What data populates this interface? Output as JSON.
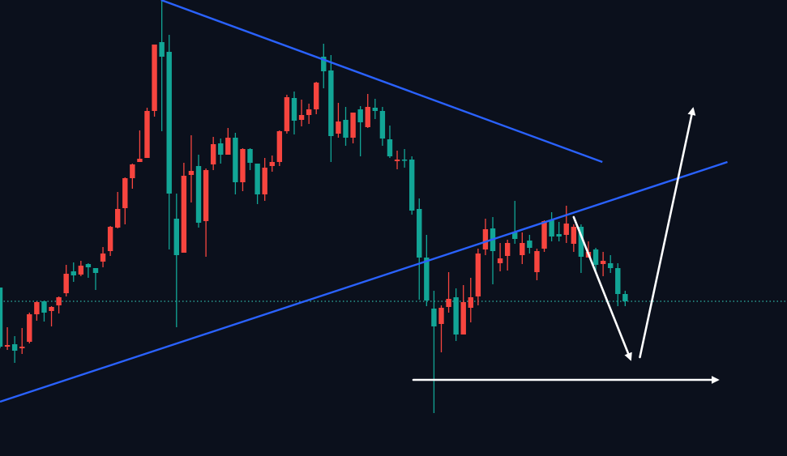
{
  "chart_data": {
    "type": "candlestick",
    "title": "",
    "xlabel": "",
    "ylabel": "",
    "xlim": [
      0,
      107
    ],
    "ylim": [
      0,
      563
    ],
    "grid": false,
    "colors": {
      "background": "#0b101c",
      "up": "#f7453f",
      "down": "#12a596",
      "trendline": "#2a62ff",
      "annotation": "#ffffff",
      "price_line": "#2fb5a8"
    },
    "candles_ohlc": [
      [
        208,
        208,
        133,
        135
      ],
      [
        135,
        159,
        131,
        137
      ],
      [
        138,
        148,
        115,
        130
      ],
      [
        133,
        158,
        126,
        135
      ],
      [
        141,
        177,
        139,
        175
      ],
      [
        175,
        191,
        167,
        190
      ],
      [
        191,
        192,
        166,
        177
      ],
      [
        179,
        185,
        160,
        184
      ],
      [
        186,
        197,
        176,
        196
      ],
      [
        201,
        236,
        197,
        225
      ],
      [
        228,
        239,
        215,
        223
      ],
      [
        224,
        241,
        222,
        235
      ],
      [
        237,
        238,
        220,
        233
      ],
      [
        232,
        232,
        205,
        226
      ],
      [
        240,
        258,
        233,
        250
      ],
      [
        253,
        284,
        247,
        283
      ],
      [
        282,
        326,
        281,
        305
      ],
      [
        306,
        344,
        286,
        343
      ],
      [
        343,
        361,
        330,
        360
      ],
      [
        363,
        402,
        363,
        367
      ],
      [
        368,
        430,
        368,
        426
      ],
      [
        426,
        508,
        419,
        508
      ],
      [
        511,
        563,
        401,
        493
      ],
      [
        499,
        520,
        255,
        324
      ],
      [
        293,
        324,
        159,
        248
      ],
      [
        251,
        362,
        251,
        346
      ],
      [
        347,
        396,
        313,
        352
      ],
      [
        358,
        372,
        282,
        288
      ],
      [
        290,
        355,
        246,
        353
      ],
      [
        360,
        394,
        353,
        385
      ],
      [
        386,
        392,
        361,
        372
      ],
      [
        372,
        405,
        372,
        393
      ],
      [
        393,
        399,
        323,
        338
      ],
      [
        338,
        380,
        327,
        379
      ],
      [
        379,
        380,
        353,
        362
      ],
      [
        361,
        361,
        311,
        323
      ],
      [
        323,
        368,
        315,
        356
      ],
      [
        358,
        371,
        351,
        363
      ],
      [
        363,
        402,
        358,
        401
      ],
      [
        401,
        446,
        398,
        443
      ],
      [
        442,
        450,
        397,
        414
      ],
      [
        415,
        440,
        407,
        421
      ],
      [
        421,
        435,
        410,
        428
      ],
      [
        428,
        462,
        422,
        461
      ],
      [
        493,
        509,
        454,
        475
      ],
      [
        476,
        495,
        363,
        395
      ],
      [
        398,
        436,
        393,
        413
      ],
      [
        415,
        431,
        383,
        393
      ],
      [
        393,
        424,
        386,
        424
      ],
      [
        428,
        432,
        370,
        412
      ],
      [
        406,
        447,
        405,
        431
      ],
      [
        430,
        441,
        416,
        426
      ],
      [
        426,
        431,
        383,
        392
      ],
      [
        391,
        408,
        368,
        370
      ],
      [
        364,
        377,
        354,
        366
      ],
      [
        366,
        379,
        356,
        365
      ],
      [
        366,
        370,
        298,
        303
      ],
      [
        305,
        318,
        193,
        245
      ],
      [
        245,
        273,
        185,
        192
      ],
      [
        182,
        204,
        53,
        160
      ],
      [
        163,
        186,
        128,
        183
      ],
      [
        184,
        227,
        177,
        194
      ],
      [
        196,
        207,
        142,
        150
      ],
      [
        150,
        211,
        150,
        190
      ],
      [
        183,
        220,
        165,
        196
      ],
      [
        197,
        256,
        186,
        250
      ],
      [
        255,
        293,
        248,
        280
      ],
      [
        281,
        295,
        212,
        253
      ],
      [
        238,
        263,
        228,
        244
      ],
      [
        247,
        267,
        229,
        263
      ],
      [
        276,
        315,
        262,
        268
      ],
      [
        248,
        276,
        237,
        263
      ],
      [
        266,
        273,
        250,
        257
      ],
      [
        227,
        256,
        217,
        253
      ],
      [
        256,
        291,
        252,
        290
      ],
      [
        291,
        301,
        265,
        271
      ],
      [
        274,
        289,
        265,
        271
      ],
      [
        273,
        309,
        263,
        287
      ],
      [
        262,
        286,
        252,
        283
      ],
      [
        283,
        286,
        226,
        246
      ],
      [
        245,
        265,
        245,
        252
      ],
      [
        255,
        257,
        227,
        236
      ],
      [
        237,
        252,
        222,
        241
      ],
      [
        238,
        248,
        226,
        232
      ],
      [
        232,
        238,
        185,
        200
      ],
      [
        200,
        204,
        185,
        191
      ]
    ],
    "last_price_line": 191,
    "trendlines": [
      {
        "from": [
          21.9,
          563
        ],
        "to": [
          81.9,
          363
        ]
      },
      {
        "from": [
          0,
          67
        ],
        "to": [
          98.9,
          363
        ]
      }
    ],
    "arrows": [
      {
        "from": [
          78,
          295
        ],
        "to": [
          85.7,
          120
        ]
      },
      {
        "from": [
          87,
          122
        ],
        "to": [
          94.2,
          428
        ]
      },
      {
        "from": [
          56.2,
          94
        ],
        "to": [
          97.5,
          94
        ]
      }
    ]
  }
}
